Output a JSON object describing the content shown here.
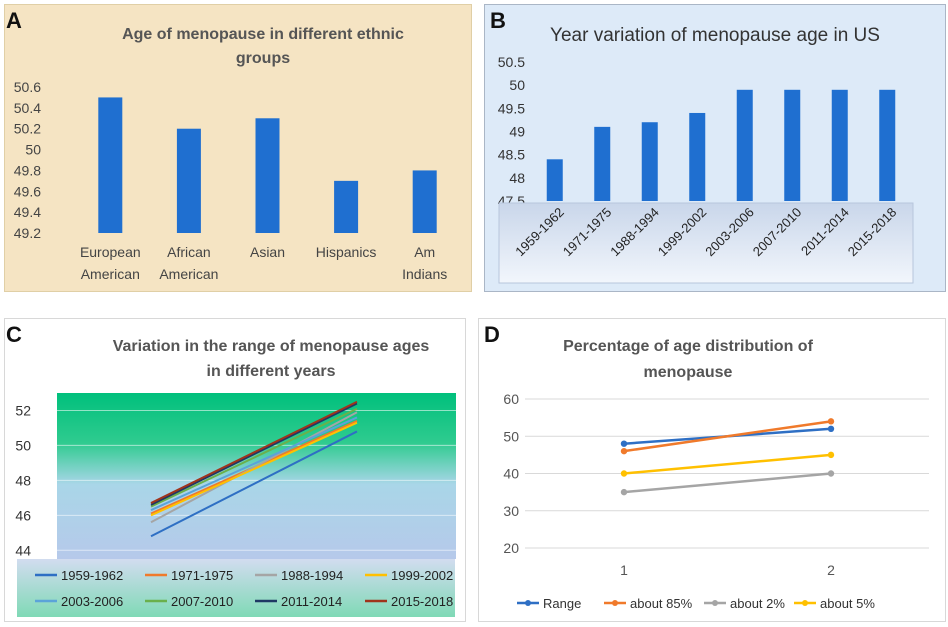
{
  "colors": {
    "bar": "#1f6fd0",
    "panel_a_bg": "#f5e4c3",
    "panel_b_bg": "#ddeaf8",
    "title_b": "#333333",
    "title_a": "#555555",
    "axis_text": "#444444"
  },
  "chart_data": [
    {
      "panel": "A",
      "type": "bar",
      "title_lines": [
        "Age of menopause in different ethnic",
        "groups"
      ],
      "categories": [
        [
          "European",
          "American"
        ],
        [
          "African",
          "American"
        ],
        [
          "Asian"
        ],
        [
          "Hispanics"
        ],
        [
          "Am",
          "Indians"
        ]
      ],
      "values": [
        50.5,
        50.2,
        50.3,
        49.7,
        49.8
      ],
      "yticks": [
        "49.2",
        "49.4",
        "49.6",
        "49.8",
        "50",
        "50.2",
        "50.4",
        "50.6"
      ],
      "ylim": [
        49.2,
        50.6
      ]
    },
    {
      "panel": "B",
      "type": "bar",
      "title": "Year variation of menopause age  in US",
      "categories": [
        "1959-1962",
        "1971-1975",
        "1988-1994",
        "1999-2002",
        "2003-2006",
        "2007-2010",
        "2011-2014",
        "2015-2018"
      ],
      "values": [
        48.4,
        49.1,
        49.2,
        49.4,
        49.9,
        49.9,
        49.9,
        49.9
      ],
      "yticks": [
        "47.5",
        "48",
        "48.5",
        "49",
        "49.5",
        "50",
        "50.5"
      ],
      "ylim": [
        47.5,
        50.5
      ]
    },
    {
      "panel": "C",
      "type": "line",
      "title_lines": [
        "Variation in the range of menopause ages",
        "in different years"
      ],
      "yticks": [
        "44",
        "46",
        "48",
        "50",
        "52"
      ],
      "ylim": [
        43.5,
        53
      ],
      "series": [
        {
          "name": "1959-1962",
          "values": [
            44.8,
            50.8
          ],
          "color": "#2e6fc4"
        },
        {
          "name": "1971-1975",
          "values": [
            46.1,
            51.4
          ],
          "color": "#f07a2b"
        },
        {
          "name": "1988-1994",
          "values": [
            45.6,
            51.9
          ],
          "color": "#a5a5a5"
        },
        {
          "name": "1999-2002",
          "values": [
            46.0,
            51.3
          ],
          "color": "#ffc000"
        },
        {
          "name": "2003-2006",
          "values": [
            46.3,
            51.6
          ],
          "color": "#5ba3d9"
        },
        {
          "name": "2007-2010",
          "values": [
            46.5,
            52.1
          ],
          "color": "#6ab04c"
        },
        {
          "name": "2011-2014",
          "values": [
            46.6,
            52.4
          ],
          "color": "#1f3864"
        },
        {
          "name": "2015-2018",
          "values": [
            46.7,
            52.5
          ],
          "color": "#a0341c"
        }
      ]
    },
    {
      "panel": "D",
      "type": "line",
      "title_lines": [
        "Percentage of age distribution of",
        "menopause"
      ],
      "categories": [
        "1",
        "2"
      ],
      "yticks": [
        "20",
        "30",
        "40",
        "50",
        "60"
      ],
      "ylim": [
        20,
        60
      ],
      "series": [
        {
          "name": "Range",
          "values": [
            48,
            52
          ],
          "color": "#2e6fc4"
        },
        {
          "name": "about 85%",
          "values": [
            46,
            54
          ],
          "color": "#f07a2b"
        },
        {
          "name": "about 2%",
          "values": [
            35,
            40
          ],
          "color": "#a5a5a5"
        },
        {
          "name": "about 5%",
          "values": [
            40,
            45
          ],
          "color": "#ffc000"
        }
      ]
    }
  ]
}
